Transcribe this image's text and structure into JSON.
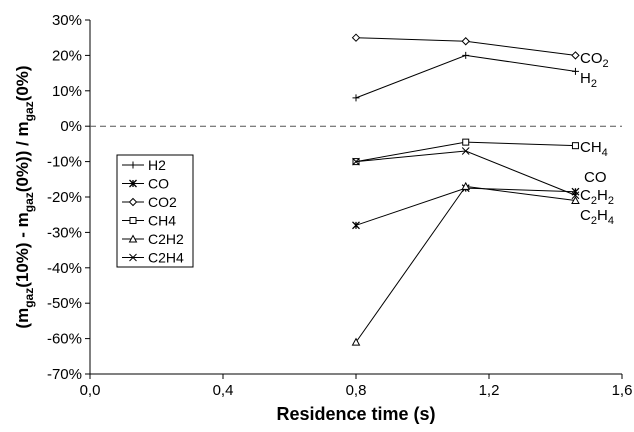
{
  "chart_data": {
    "type": "line",
    "xlabel": "Residence time (s)",
    "ylabel": {
      "parts": [
        {
          "text": "(m",
          "sub": false
        },
        {
          "text": "gaz",
          "sub": true
        },
        {
          "text": "(10%) - m",
          "sub": false
        },
        {
          "text": "gaz",
          "sub": true
        },
        {
          "text": "(0%)) / m",
          "sub": false
        },
        {
          "text": "gaz",
          "sub": true
        },
        {
          "text": "(0%)",
          "sub": false
        }
      ]
    },
    "xlim": [
      0,
      1.6
    ],
    "ylim": [
      -70,
      30
    ],
    "x_ticks": [
      0,
      0.4,
      0.8,
      1.2,
      1.6
    ],
    "x_tick_labels": [
      "0,0",
      "0,4",
      "0,8",
      "1,2",
      "1,6"
    ],
    "y_ticks": [
      30,
      20,
      10,
      0,
      -10,
      -20,
      -30,
      -40,
      -50,
      -60,
      -70
    ],
    "y_tick_labels": [
      "30%",
      "20%",
      "10%",
      "0%",
      "-10%",
      "-20%",
      "-30%",
      "-40%",
      "-50%",
      "-60%",
      "-70%"
    ],
    "zero_line": "dashed",
    "grid": false,
    "legend_position": "left-middle",
    "x": [
      0.8,
      1.13,
      1.46
    ],
    "series": [
      {
        "name": "H2",
        "marker": "plus",
        "values": [
          8,
          20,
          15.5
        ]
      },
      {
        "name": "CO",
        "marker": "star",
        "values": [
          -28,
          -17.5,
          -18.5
        ]
      },
      {
        "name": "CO2",
        "marker": "diamond",
        "values": [
          25,
          24,
          20
        ]
      },
      {
        "name": "CH4",
        "marker": "square",
        "values": [
          -10,
          -4.5,
          -5.5
        ]
      },
      {
        "name": "C2H2",
        "marker": "triangle",
        "values": [
          -61,
          -17,
          -21
        ]
      },
      {
        "name": "C2H4",
        "marker": "cross",
        "values": [
          -10,
          -7,
          -19.5
        ]
      }
    ],
    "end_labels": [
      {
        "base": "CO",
        "sub": "2"
      },
      {
        "base": "H",
        "sub": "2"
      },
      {
        "base": "CH",
        "sub": "4"
      },
      {
        "base": "CO",
        "sub": ""
      },
      {
        "base": "C",
        "mid": "2",
        "tail": "H",
        "sub": "2"
      },
      {
        "base": "C",
        "mid": "2",
        "tail": "H",
        "sub": "4"
      }
    ]
  }
}
